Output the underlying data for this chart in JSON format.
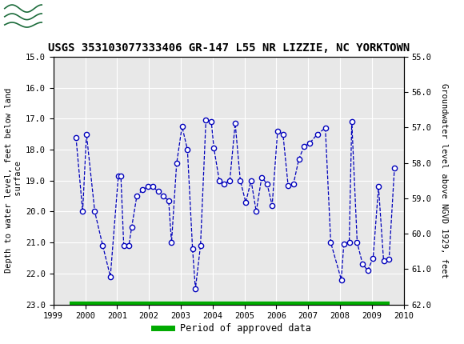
{
  "title": "USGS 353103077333406 GR-147 L55 NR LIZZIE, NC YORKTOWN",
  "ylabel_left": "Depth to water level, feet below land\n surface",
  "ylabel_right": "Groundwater level above NGVD 1929, feet",
  "ylim_left": [
    23.0,
    15.0
  ],
  "ylim_right": [
    55.0,
    62.0
  ],
  "xlim": [
    1999.0,
    2010.0
  ],
  "xticks": [
    1999,
    2000,
    2001,
    2002,
    2003,
    2004,
    2005,
    2006,
    2007,
    2008,
    2009,
    2010
  ],
  "yticks_left": [
    15.0,
    16.0,
    17.0,
    18.0,
    19.0,
    20.0,
    21.0,
    22.0,
    23.0
  ],
  "yticks_right": [
    55.0,
    56.0,
    57.0,
    58.0,
    59.0,
    60.0,
    61.0,
    62.0
  ],
  "line_color": "#0000bb",
  "marker_facecolor": "#ffffff",
  "marker_edgecolor": "#0000bb",
  "approved_bar_color": "#00aa00",
  "approved_bar_y": 23.0,
  "approved_start": 1999.5,
  "approved_end": 2009.55,
  "header_color": "#1b6b3a",
  "background_color": "#ffffff",
  "plot_bg_color": "#e8e8e8",
  "data_x": [
    1999.71,
    1999.92,
    2000.04,
    2000.3,
    2000.55,
    2000.79,
    2001.04,
    2001.12,
    2001.21,
    2001.37,
    2001.46,
    2001.62,
    2001.79,
    2001.96,
    2002.12,
    2002.29,
    2002.46,
    2002.62,
    2002.71,
    2002.87,
    2003.04,
    2003.21,
    2003.37,
    2003.46,
    2003.62,
    2003.79,
    2003.96,
    2004.04,
    2004.21,
    2004.37,
    2004.54,
    2004.71,
    2004.87,
    2005.04,
    2005.21,
    2005.37,
    2005.54,
    2005.71,
    2005.87,
    2006.04,
    2006.21,
    2006.37,
    2006.54,
    2006.71,
    2006.87,
    2007.04,
    2007.29,
    2007.54,
    2007.71,
    2008.04,
    2008.12,
    2008.29,
    2008.37,
    2008.54,
    2008.71,
    2008.87,
    2009.04,
    2009.21,
    2009.37,
    2009.54,
    2009.71
  ],
  "data_y": [
    17.6,
    20.0,
    17.5,
    20.0,
    21.1,
    22.1,
    18.85,
    18.85,
    21.1,
    21.1,
    20.5,
    19.5,
    19.3,
    19.2,
    19.2,
    19.35,
    19.5,
    19.65,
    21.0,
    18.45,
    17.25,
    18.0,
    21.2,
    22.5,
    21.1,
    17.05,
    17.1,
    17.95,
    19.0,
    19.1,
    19.0,
    17.15,
    19.0,
    19.7,
    19.0,
    20.0,
    18.9,
    19.1,
    19.8,
    17.4,
    17.5,
    19.15,
    19.1,
    18.3,
    17.9,
    17.8,
    17.5,
    17.3,
    21.0,
    22.2,
    21.05,
    21.0,
    17.1,
    21.0,
    21.7,
    21.9,
    21.5,
    19.2,
    21.6,
    21.55,
    18.6
  ],
  "title_fontsize": 10,
  "axis_label_fontsize": 7.5,
  "tick_fontsize": 7.5,
  "legend_fontsize": 8.5
}
